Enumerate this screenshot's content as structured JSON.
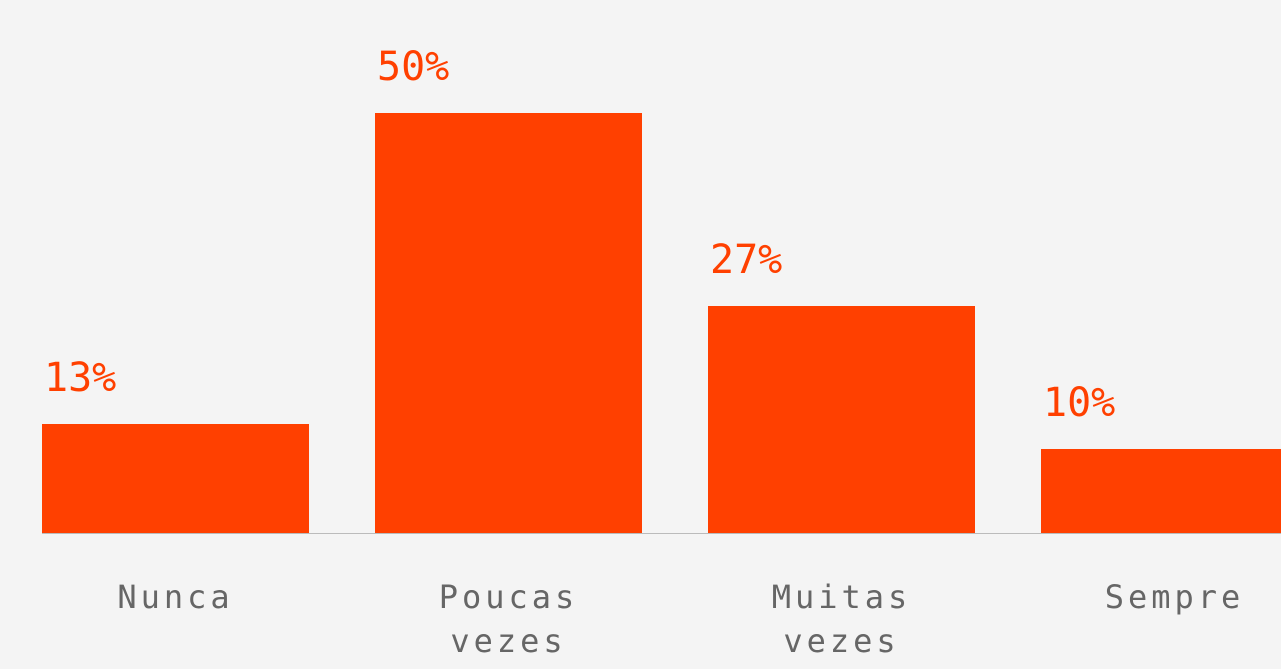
{
  "chart_data": {
    "type": "bar",
    "categories": [
      "Nunca",
      "Poucas vezes",
      "Muitas vezes",
      "Sempre"
    ],
    "values": [
      13,
      50,
      27,
      10
    ],
    "value_labels": [
      "13%",
      "50%",
      "27%",
      "10%"
    ],
    "color": "#ff4000",
    "label_color": "#ff4000",
    "category_color": "#666666",
    "baseline_color": "#bbbbbb",
    "background": "#f4f4f4"
  }
}
